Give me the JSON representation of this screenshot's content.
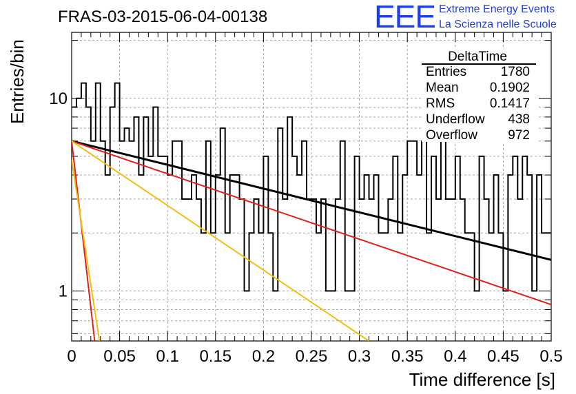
{
  "header": {
    "run_title": "FRAS-03-2015-06-04-00138",
    "logo_text": "EEE",
    "logo_line1": "Extreme Energy Events",
    "logo_line2": "La Scienza nelle Scuole",
    "logo_color": "#1f3fe6"
  },
  "stats_box": {
    "title": "DeltaTime",
    "rows": [
      {
        "label": "Entries",
        "value": "1780"
      },
      {
        "label": "Mean",
        "value": "0.1902"
      },
      {
        "label": "RMS",
        "value": "0.1417"
      },
      {
        "label": "Underflow",
        "value": "438"
      },
      {
        "label": "Overflow",
        "value": "972"
      }
    ]
  },
  "chart_data": {
    "type": "line",
    "title": "FRAS-03-2015-06-04-00138",
    "xlabel": "Time difference [s]",
    "ylabel": "Entries/bin",
    "xlim": [
      0,
      0.5
    ],
    "ylim": [
      0.55,
      22
    ],
    "y_scale": "log",
    "grid": true,
    "x_ticks": [
      "0",
      "0.05",
      "0.1",
      "0.15",
      "0.2",
      "0.25",
      "0.3",
      "0.35",
      "0.4",
      "0.45",
      "0.5"
    ],
    "y_ticks": [
      "1",
      "10"
    ],
    "histogram": {
      "name": "DeltaTime",
      "bin_width": 0.005,
      "values": [
        9,
        10,
        12,
        9,
        6,
        12,
        6,
        4,
        9,
        12,
        6,
        7,
        6,
        8,
        4,
        8,
        5,
        9,
        5,
        5,
        4,
        6,
        6,
        3,
        3,
        4,
        3,
        2,
        6,
        2,
        4,
        7,
        2,
        4,
        4,
        3,
        1,
        2,
        3,
        2,
        5,
        2,
        1,
        7,
        3,
        8,
        5,
        4,
        6,
        3,
        3,
        2,
        3,
        1,
        1,
        3,
        6,
        1,
        1,
        5,
        3,
        4,
        3,
        4,
        2,
        2,
        3,
        5,
        2,
        4,
        6,
        6,
        4,
        6,
        2,
        5,
        3,
        6,
        3,
        3,
        5,
        3,
        2,
        2,
        1,
        5,
        3,
        2,
        4,
        2,
        1,
        4,
        5,
        3,
        5,
        4,
        1,
        4,
        2,
        2
      ],
      "color": "#000000"
    },
    "series": [
      {
        "x": [
          0.0,
          0.5
        ],
        "y": [
          6.0,
          1.45
        ],
        "color": "#000000"
      },
      {
        "x": [
          0.0,
          0.5
        ],
        "y": [
          6.0,
          0.85
        ],
        "color": "#e0201b"
      },
      {
        "x": [
          0.0,
          0.024
        ],
        "y": [
          6.0,
          0.55
        ],
        "color": "#e0201b"
      },
      {
        "x": [
          0.0,
          0.31
        ],
        "y": [
          6.0,
          0.55
        ],
        "color": "#f2be0f"
      },
      {
        "x": [
          0.0,
          0.029
        ],
        "y": [
          4.8,
          0.55
        ],
        "color": "#f2be0f"
      }
    ]
  }
}
